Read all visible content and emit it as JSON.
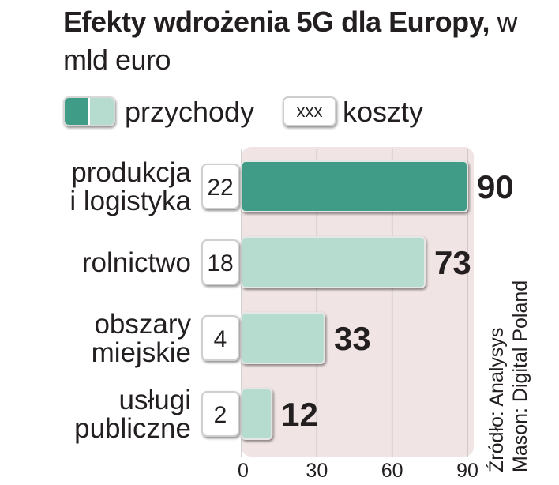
{
  "title": {
    "bold": "Efekty wdrożenia 5G dla Europy,",
    "unit": "w mld euro"
  },
  "legend": {
    "revenue_label": "przychody",
    "cost_box_text": "xxx",
    "cost_label": "koszty"
  },
  "source": {
    "line1": "Źródło: Analysys",
    "line2": "Mason: Digital Poland"
  },
  "colors": {
    "highlight": "#3f9c87",
    "bar": "#b6dccf",
    "plot_bg": "#f1e4e4",
    "cost_box_border": "#cfcfcf"
  },
  "chart_data": {
    "type": "bar",
    "orientation": "horizontal",
    "categories": [
      [
        "produkcja",
        "i logistyka"
      ],
      [
        "rolnictwo"
      ],
      [
        "obszary",
        "miejskie"
      ],
      [
        "usługi",
        "publiczne"
      ]
    ],
    "series": [
      {
        "name": "przychody",
        "values": [
          90,
          73,
          33,
          12
        ]
      },
      {
        "name": "koszty",
        "values": [
          22,
          18,
          4,
          2
        ]
      }
    ],
    "highlight_index": 0,
    "x_ticks": [
      0,
      30,
      60,
      90
    ],
    "xlim": [
      0,
      90
    ],
    "grid": true
  }
}
